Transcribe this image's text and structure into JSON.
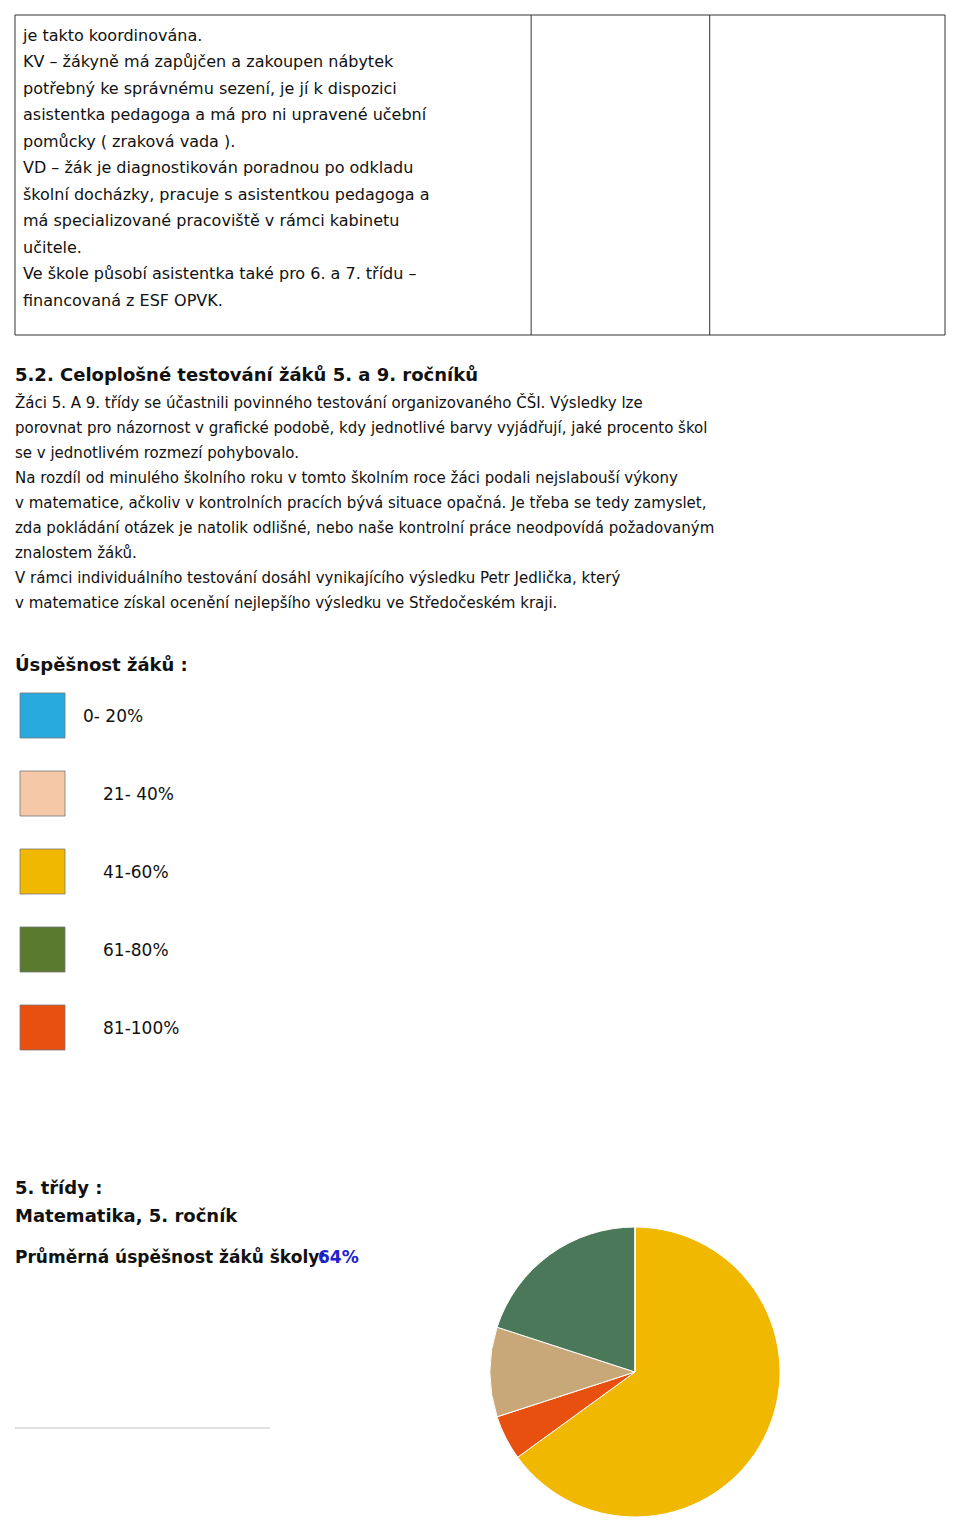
{
  "chart_data": {
    "type": "pie",
    "title": "5. třídy :",
    "subtitle": "Matematika, 5. ročník",
    "values": [
      65,
      5,
      10,
      20,
      0
    ],
    "colors": [
      "#F0B800",
      "#E85010",
      "#C8A878",
      "#4A7858",
      "#29AADF"
    ],
    "annotations": [
      {
        "kind": "table",
        "lines": [
          "je takto koordinována.",
          "KV – žákyně má zapůjčen a zakoupen nábytek",
          "potřebný ke správnému sezení, je jí k dispozici",
          "asistentka pedagoga a má pro ni upravené učební",
          "pomůcky ( zraková vada ).",
          "VD – žák je diagnostikován poradnou po odkladu",
          "školní docházky, pracuje s asistentkou pedagoga a",
          "má specializované pracoviště v rámci kabinetu",
          "učitele.",
          "Ve škole působí asistentka také pro 6. a 7. třídu –",
          "financovaná z ESF OPVK."
        ]
      },
      {
        "kind": "heading",
        "text": "5.2. Celoplošné testování žáků 5. a 9. ročníků"
      },
      {
        "kind": "body",
        "lines": [
          "Žáci 5. A 9. třídy se účastnili povinného testování organizovaného ČŠI. Výsledky lze",
          "porovnat pro názornost v grafické podobě, kdy jednotlivé barvy vyjádřují, jaké procento škol",
          "se v jednotlivém rozmezí pohybovalo.",
          "Na rozdíl od minulého školního roku v tomto školním roce žáci podali nejslabouší výkony",
          "v matematice, ačkoliv v kontrolních pracích bývá situace opačná. Je třeba se tedy zamyslet,",
          "zda pokládání otázek je natolik odlišné, nebo naše kontrolní práce neodpovídá požadovaným",
          "znalostem žáků.",
          "V rámci individuálního testování dosáhl vynikajícího výsledku Petr Jedlička, který",
          "v matematice získal ocenění nejlepšího výsledku ve Středočeském kraji."
        ]
      },
      {
        "kind": "key",
        "title": "Úspěšnost žáků :",
        "items": [
          {
            "label": "0- 20%",
            "color": "#29AADF"
          },
          {
            "label": "21- 40%",
            "color": "#F5C8A8"
          },
          {
            "label": "41-60%",
            "color": "#F0B800"
          },
          {
            "label": "61-80%",
            "color": "#5A7A30"
          },
          {
            "label": "81-100%",
            "color": "#E85010"
          }
        ]
      },
      {
        "kind": "note",
        "text": "Průměrná úspěšnost žáků školy:",
        "value_text": "64%",
        "color": "#2222CC"
      }
    ]
  }
}
